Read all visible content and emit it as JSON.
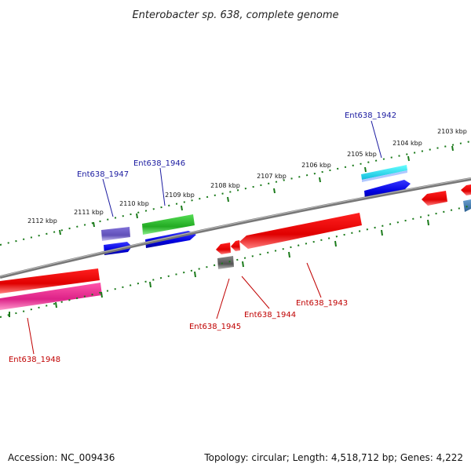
{
  "title": "Enterobacter sp. 638, complete genome",
  "ticks": [
    {
      "label": "2112 kbp"
    },
    {
      "label": "2111 kbp"
    },
    {
      "label": "2110 kbp"
    },
    {
      "label": "2109 kbp"
    },
    {
      "label": "2108 kbp"
    },
    {
      "label": "2107 kbp"
    },
    {
      "label": "2106 kbp"
    },
    {
      "label": "2105 kbp"
    },
    {
      "label": "2104 kbp"
    },
    {
      "label": "2103 kbp"
    }
  ],
  "gene_labels": [
    {
      "name": "Ent638_1947",
      "color": "#1a1aa0"
    },
    {
      "name": "Ent638_1946",
      "color": "#1a1aa0"
    },
    {
      "name": "Ent638_1942",
      "color": "#1a1aa0"
    },
    {
      "name": "Ent638_1945",
      "color": "#c00000"
    },
    {
      "name": "Ent638_1944",
      "color": "#c00000"
    },
    {
      "name": "Ent638_1943",
      "color": "#c00000"
    },
    {
      "name": "Ent638_1948",
      "color": "#c00000"
    }
  ],
  "feature_colors": {
    "forward_cds": "#0000ee",
    "reverse_cds": "#ee0000",
    "rna_green": "#33bb33",
    "purple": "#7060c8",
    "pink": "#ee3399",
    "cyan": "#22ddee",
    "gray": "#666666",
    "steel": "#4a7fb0",
    "backbone": "#888888",
    "tick_green": "#1a7a1a"
  },
  "footer": {
    "accession": "Accession: NC_009436",
    "summary": "Topology: circular; Length: 4,518,712 bp; Genes: 4,222"
  }
}
